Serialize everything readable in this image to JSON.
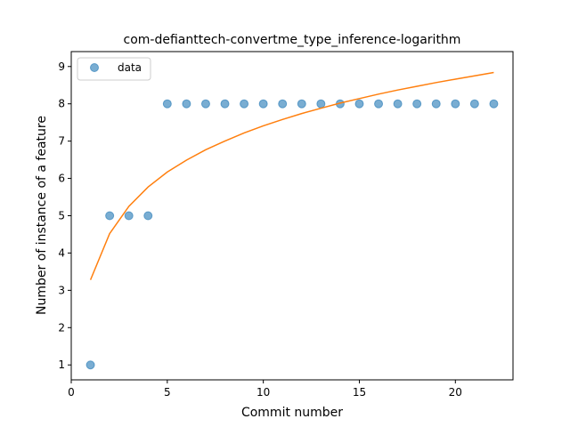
{
  "chart_data": {
    "type": "scatter",
    "title": "com-defianttech-convertme_type_inference-logarithm",
    "xlabel": "Commit number",
    "ylabel": "Number of instance of a feature",
    "xlim": [
      0,
      23
    ],
    "ylim": [
      0.6,
      9.4
    ],
    "xticks": [
      0,
      5,
      10,
      15,
      20
    ],
    "yticks": [
      1,
      2,
      3,
      4,
      5,
      6,
      7,
      8,
      9
    ],
    "grid": false,
    "legend": {
      "position": "top-left",
      "entries": [
        "data"
      ]
    },
    "series": [
      {
        "name": "data",
        "kind": "scatter",
        "color": "#1f77b4",
        "x": [
          1,
          2,
          3,
          4,
          5,
          6,
          7,
          8,
          9,
          10,
          11,
          12,
          13,
          14,
          15,
          16,
          17,
          18,
          19,
          20,
          21,
          22
        ],
        "y": [
          1,
          5,
          5,
          5,
          8,
          8,
          8,
          8,
          8,
          8,
          8,
          8,
          8,
          8,
          8,
          8,
          8,
          8,
          8,
          8,
          8,
          8
        ]
      },
      {
        "kind": "line",
        "color": "#ff7f0e",
        "x": [
          1,
          2,
          3,
          4,
          5,
          6,
          7,
          8,
          9,
          10,
          11,
          12,
          13,
          14,
          15,
          16,
          17,
          18,
          19,
          20,
          21,
          22
        ],
        "y": [
          3.28,
          4.52,
          5.25,
          5.77,
          6.17,
          6.49,
          6.77,
          7.0,
          7.22,
          7.41,
          7.58,
          7.74,
          7.88,
          8.02,
          8.14,
          8.26,
          8.37,
          8.47,
          8.57,
          8.66,
          8.75,
          8.84
        ]
      }
    ]
  }
}
